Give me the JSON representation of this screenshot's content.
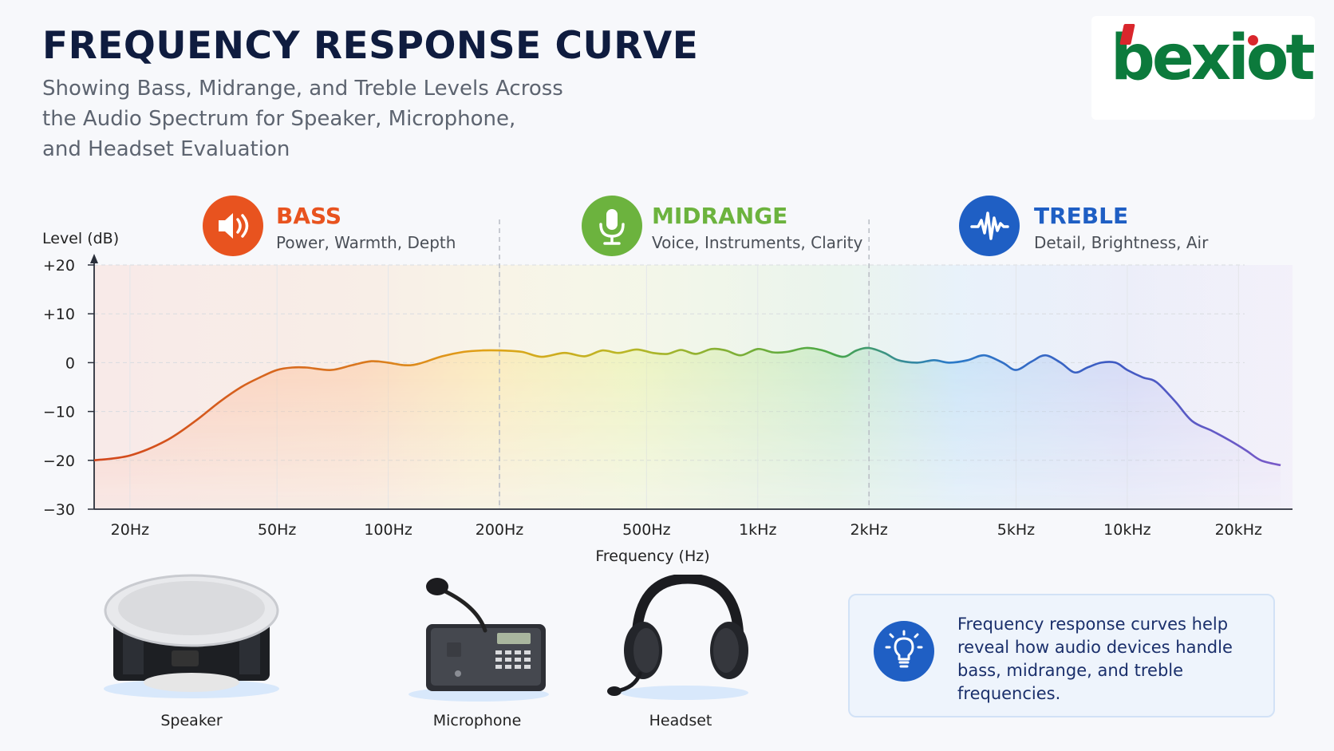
{
  "header": {
    "title": "FREQUENCY RESPONSE CURVE",
    "subtitle_lines": [
      "Showing Bass, Midrange, and Treble Levels Across",
      "the Audio Spectrum for Speaker, Microphone,",
      "and Headset Evaluation"
    ]
  },
  "logo": {
    "text": "bexiot",
    "icon": "bexiot-logo"
  },
  "bands": [
    {
      "name": "BASS",
      "desc": "Power, Warmth, Depth",
      "color": "#e8531f",
      "icon": "speaker-icon"
    },
    {
      "name": "MIDRANGE",
      "desc": "Voice, Instruments, Clarity",
      "color": "#6cb33e",
      "icon": "microphone-icon"
    },
    {
      "name": "TREBLE",
      "desc": "Detail, Brightness, Air",
      "color": "#1f5fc4",
      "icon": "waveform-icon"
    }
  ],
  "chart_data": {
    "type": "line",
    "xlabel": "Frequency (Hz)",
    "ylabel": "Level (dB)",
    "x_scale": "log",
    "xlim": [
      16,
      28000
    ],
    "ylim": [
      -30,
      20
    ],
    "yticks": [
      20,
      10,
      0,
      -10,
      -20,
      -30
    ],
    "ytick_labels": [
      "+20",
      "+10",
      "0",
      "−10",
      "−20",
      "−30"
    ],
    "xticks": [
      20,
      50,
      100,
      200,
      500,
      1000,
      2000,
      5000,
      10000,
      20000
    ],
    "xtick_labels": [
      "20Hz",
      "50Hz",
      "100Hz",
      "200Hz",
      "500Hz",
      "1kHz",
      "2kHz",
      "5kHz",
      "10kHz",
      "20kHz"
    ],
    "band_boundaries_hz": [
      200,
      2000
    ],
    "grid": true,
    "series": [
      {
        "x": [
          16,
          20,
          25,
          30,
          35,
          40,
          45,
          50,
          55,
          60,
          70,
          80,
          90,
          100,
          110,
          120,
          140,
          160,
          180,
          200,
          230,
          260,
          300,
          340,
          380,
          420,
          470,
          520,
          570,
          620,
          680,
          750,
          820,
          900,
          1000,
          1100,
          1200,
          1350,
          1500,
          1700,
          1850,
          2000,
          2200,
          2400,
          2700,
          3000,
          3300,
          3700,
          4100,
          4600,
          5000,
          5500,
          6000,
          6600,
          7200,
          7800,
          8500,
          9300,
          10000,
          11000,
          12000,
          13500,
          15000,
          17000,
          19000,
          21000,
          23000,
          26000
        ],
        "y": [
          -20,
          -19,
          -16,
          -12,
          -8,
          -5,
          -3,
          -1.5,
          -1,
          -1,
          -1.5,
          -0.5,
          0.3,
          0,
          -0.5,
          -0.3,
          1.3,
          2.2,
          2.5,
          2.5,
          2.2,
          1.2,
          2,
          1.3,
          2.5,
          2,
          2.7,
          2,
          1.8,
          2.6,
          1.8,
          2.8,
          2.5,
          1.5,
          2.8,
          2.1,
          2.2,
          3,
          2.5,
          1.2,
          2.5,
          3,
          2,
          0.5,
          0,
          0.5,
          0,
          0.5,
          1.5,
          0,
          -1.5,
          0.2,
          1.5,
          0,
          -2,
          -1,
          0,
          0,
          -1.5,
          -3,
          -4,
          -8,
          -12,
          -14,
          -16,
          -18,
          -20,
          -21
        ]
      }
    ]
  },
  "devices": [
    {
      "label": "Speaker",
      "icon": "ceiling-speaker-image"
    },
    {
      "label": "Microphone",
      "icon": "desk-microphone-image"
    },
    {
      "label": "Headset",
      "icon": "headset-image"
    }
  ],
  "note": {
    "icon": "lightbulb-icon",
    "text": "Frequency response curves help reveal how audio devices handle bass, midrange, and treble frequencies."
  }
}
